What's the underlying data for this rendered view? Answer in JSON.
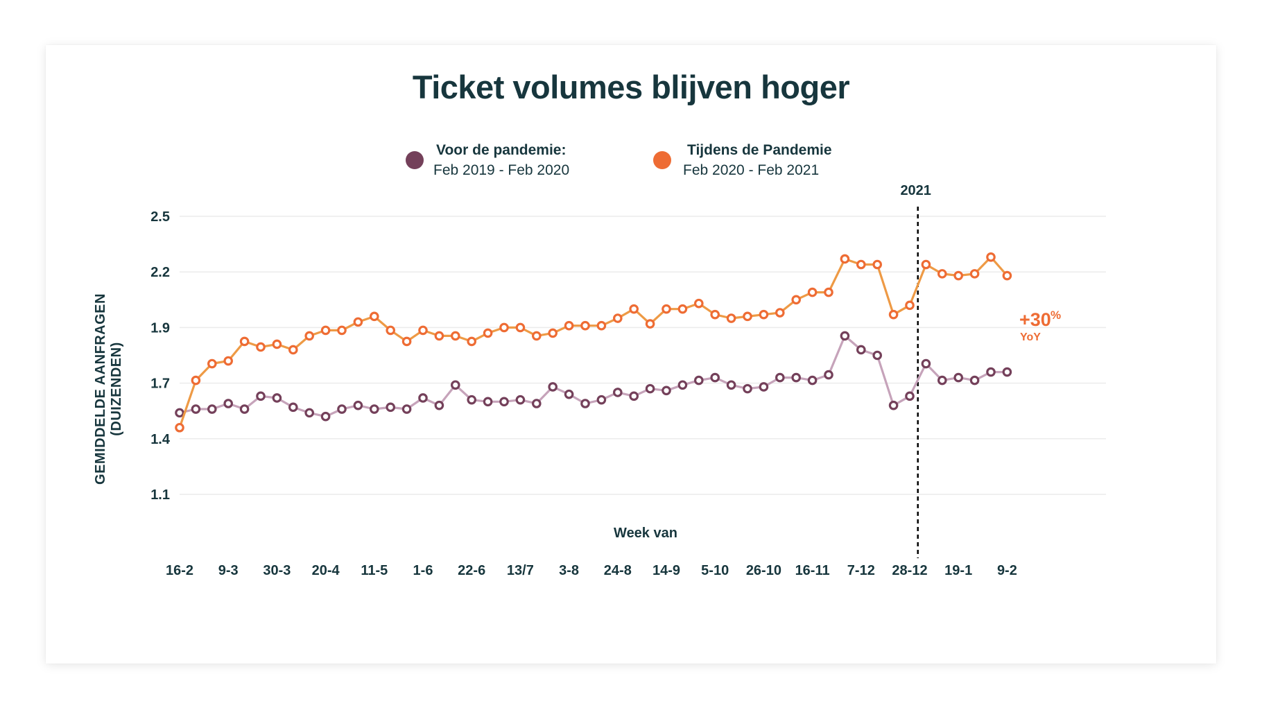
{
  "chart_data": {
    "type": "line",
    "title": "Ticket volumes blijven hoger",
    "xlabel": "Week van",
    "ylabel_lines": [
      "GEMIDDELDE AANFRAGEN",
      "(DUIZENDEN)"
    ],
    "y_ticks": [
      2.5,
      2.2,
      1.9,
      1.7,
      1.4,
      1.1
    ],
    "ylim": [
      1.1,
      2.5
    ],
    "grid": true,
    "legend_position": "top-center",
    "x_tick_labels": [
      "16-2",
      "9-3",
      "30-3",
      "20-4",
      "11-5",
      "1-6",
      "22-6",
      "13/7",
      "3-8",
      "24-8",
      "14-9",
      "5-10",
      "26-10",
      "16-11",
      "7-12",
      "28-12",
      "19-1",
      "9-2"
    ],
    "x_tick_every": 3,
    "point_count": 52,
    "series": [
      {
        "name": "Voor de pandemie:",
        "range": "Feb 2019 - Feb 2020",
        "line_color": "#c6a3ba",
        "marker_color": "#74405a",
        "legend_color": "#74405a",
        "values": [
          1.54,
          1.56,
          1.56,
          1.59,
          1.56,
          1.63,
          1.62,
          1.57,
          1.54,
          1.52,
          1.56,
          1.58,
          1.56,
          1.57,
          1.56,
          1.62,
          1.58,
          1.69,
          1.61,
          1.6,
          1.6,
          1.61,
          1.59,
          1.68,
          1.64,
          1.59,
          1.61,
          1.65,
          1.63,
          1.67,
          1.66,
          1.69,
          1.71,
          1.72,
          1.69,
          1.67,
          1.68,
          1.72,
          1.72,
          1.71,
          1.73,
          1.87,
          1.82,
          1.8,
          1.58,
          1.63,
          1.77,
          1.71,
          1.72,
          1.71,
          1.74,
          1.74
        ]
      },
      {
        "name": "Tijdens de Pandemie",
        "range": "Feb 2020 - Feb 2021",
        "line_color": "#ee9a45",
        "marker_color": "#ee6c34",
        "legend_color": "#ee6c34",
        "values": [
          1.46,
          1.71,
          1.77,
          1.78,
          1.85,
          1.83,
          1.84,
          1.82,
          1.87,
          1.89,
          1.89,
          1.93,
          1.96,
          1.89,
          1.85,
          1.89,
          1.87,
          1.87,
          1.85,
          1.88,
          1.9,
          1.9,
          1.87,
          1.88,
          1.91,
          1.91,
          1.91,
          1.95,
          2.0,
          1.92,
          2.0,
          2.0,
          2.03,
          1.97,
          1.95,
          1.96,
          1.97,
          1.98,
          2.05,
          2.09,
          2.09,
          2.27,
          2.24,
          2.24,
          1.97,
          2.02,
          2.24,
          2.19,
          2.18,
          2.19,
          2.28,
          2.18
        ]
      }
    ],
    "vertical_marker": {
      "label": "2021",
      "x_index": 45.5,
      "style": "dashed",
      "color": "#000000"
    },
    "annotations": [
      {
        "text": "+30",
        "superscript": "%",
        "subtext": "YoY",
        "color": "#ee6c34",
        "attached_to": "Tijdens de Pandemie"
      }
    ]
  },
  "colors": {
    "text": "#17363d",
    "grid": "#ebebeb"
  }
}
